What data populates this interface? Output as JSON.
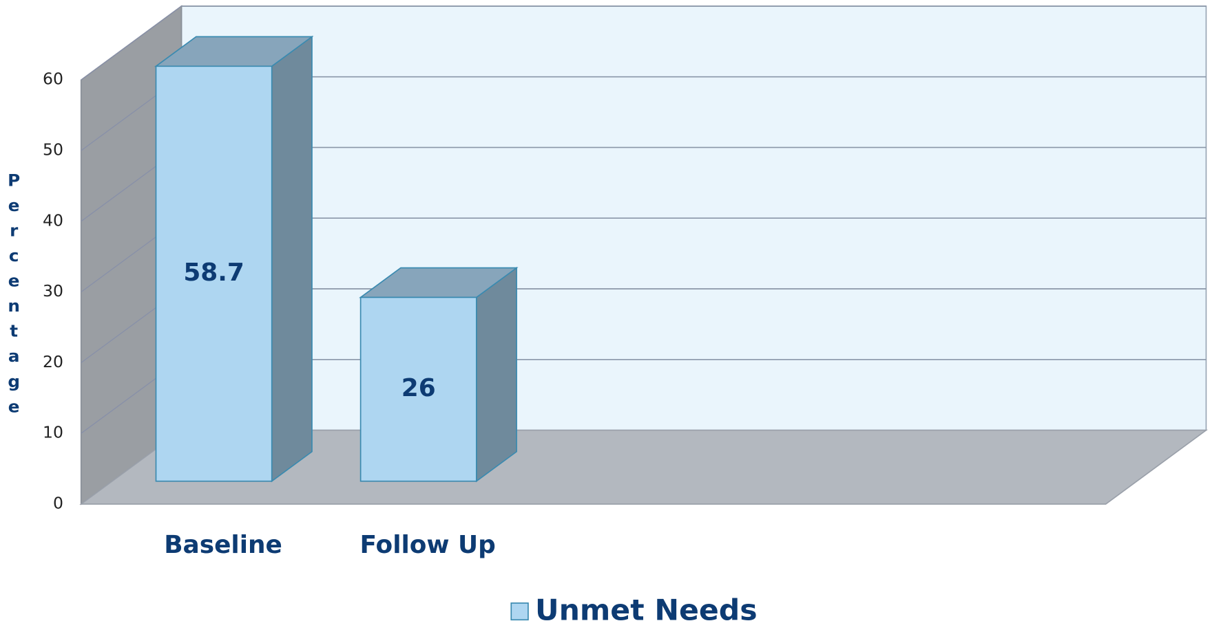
{
  "chart_data": {
    "type": "bar3d",
    "y_label": "Percentage",
    "categories": [
      "Baseline",
      "Follow Up"
    ],
    "series": [
      {
        "name": "Unmet Needs",
        "color": "#aed6f1",
        "values": [
          58.7,
          26
        ]
      }
    ],
    "ylim": [
      0,
      60
    ],
    "yticks": [
      0,
      10,
      20,
      30,
      40,
      50,
      60
    ],
    "grid": true,
    "legend": "bottom"
  }
}
